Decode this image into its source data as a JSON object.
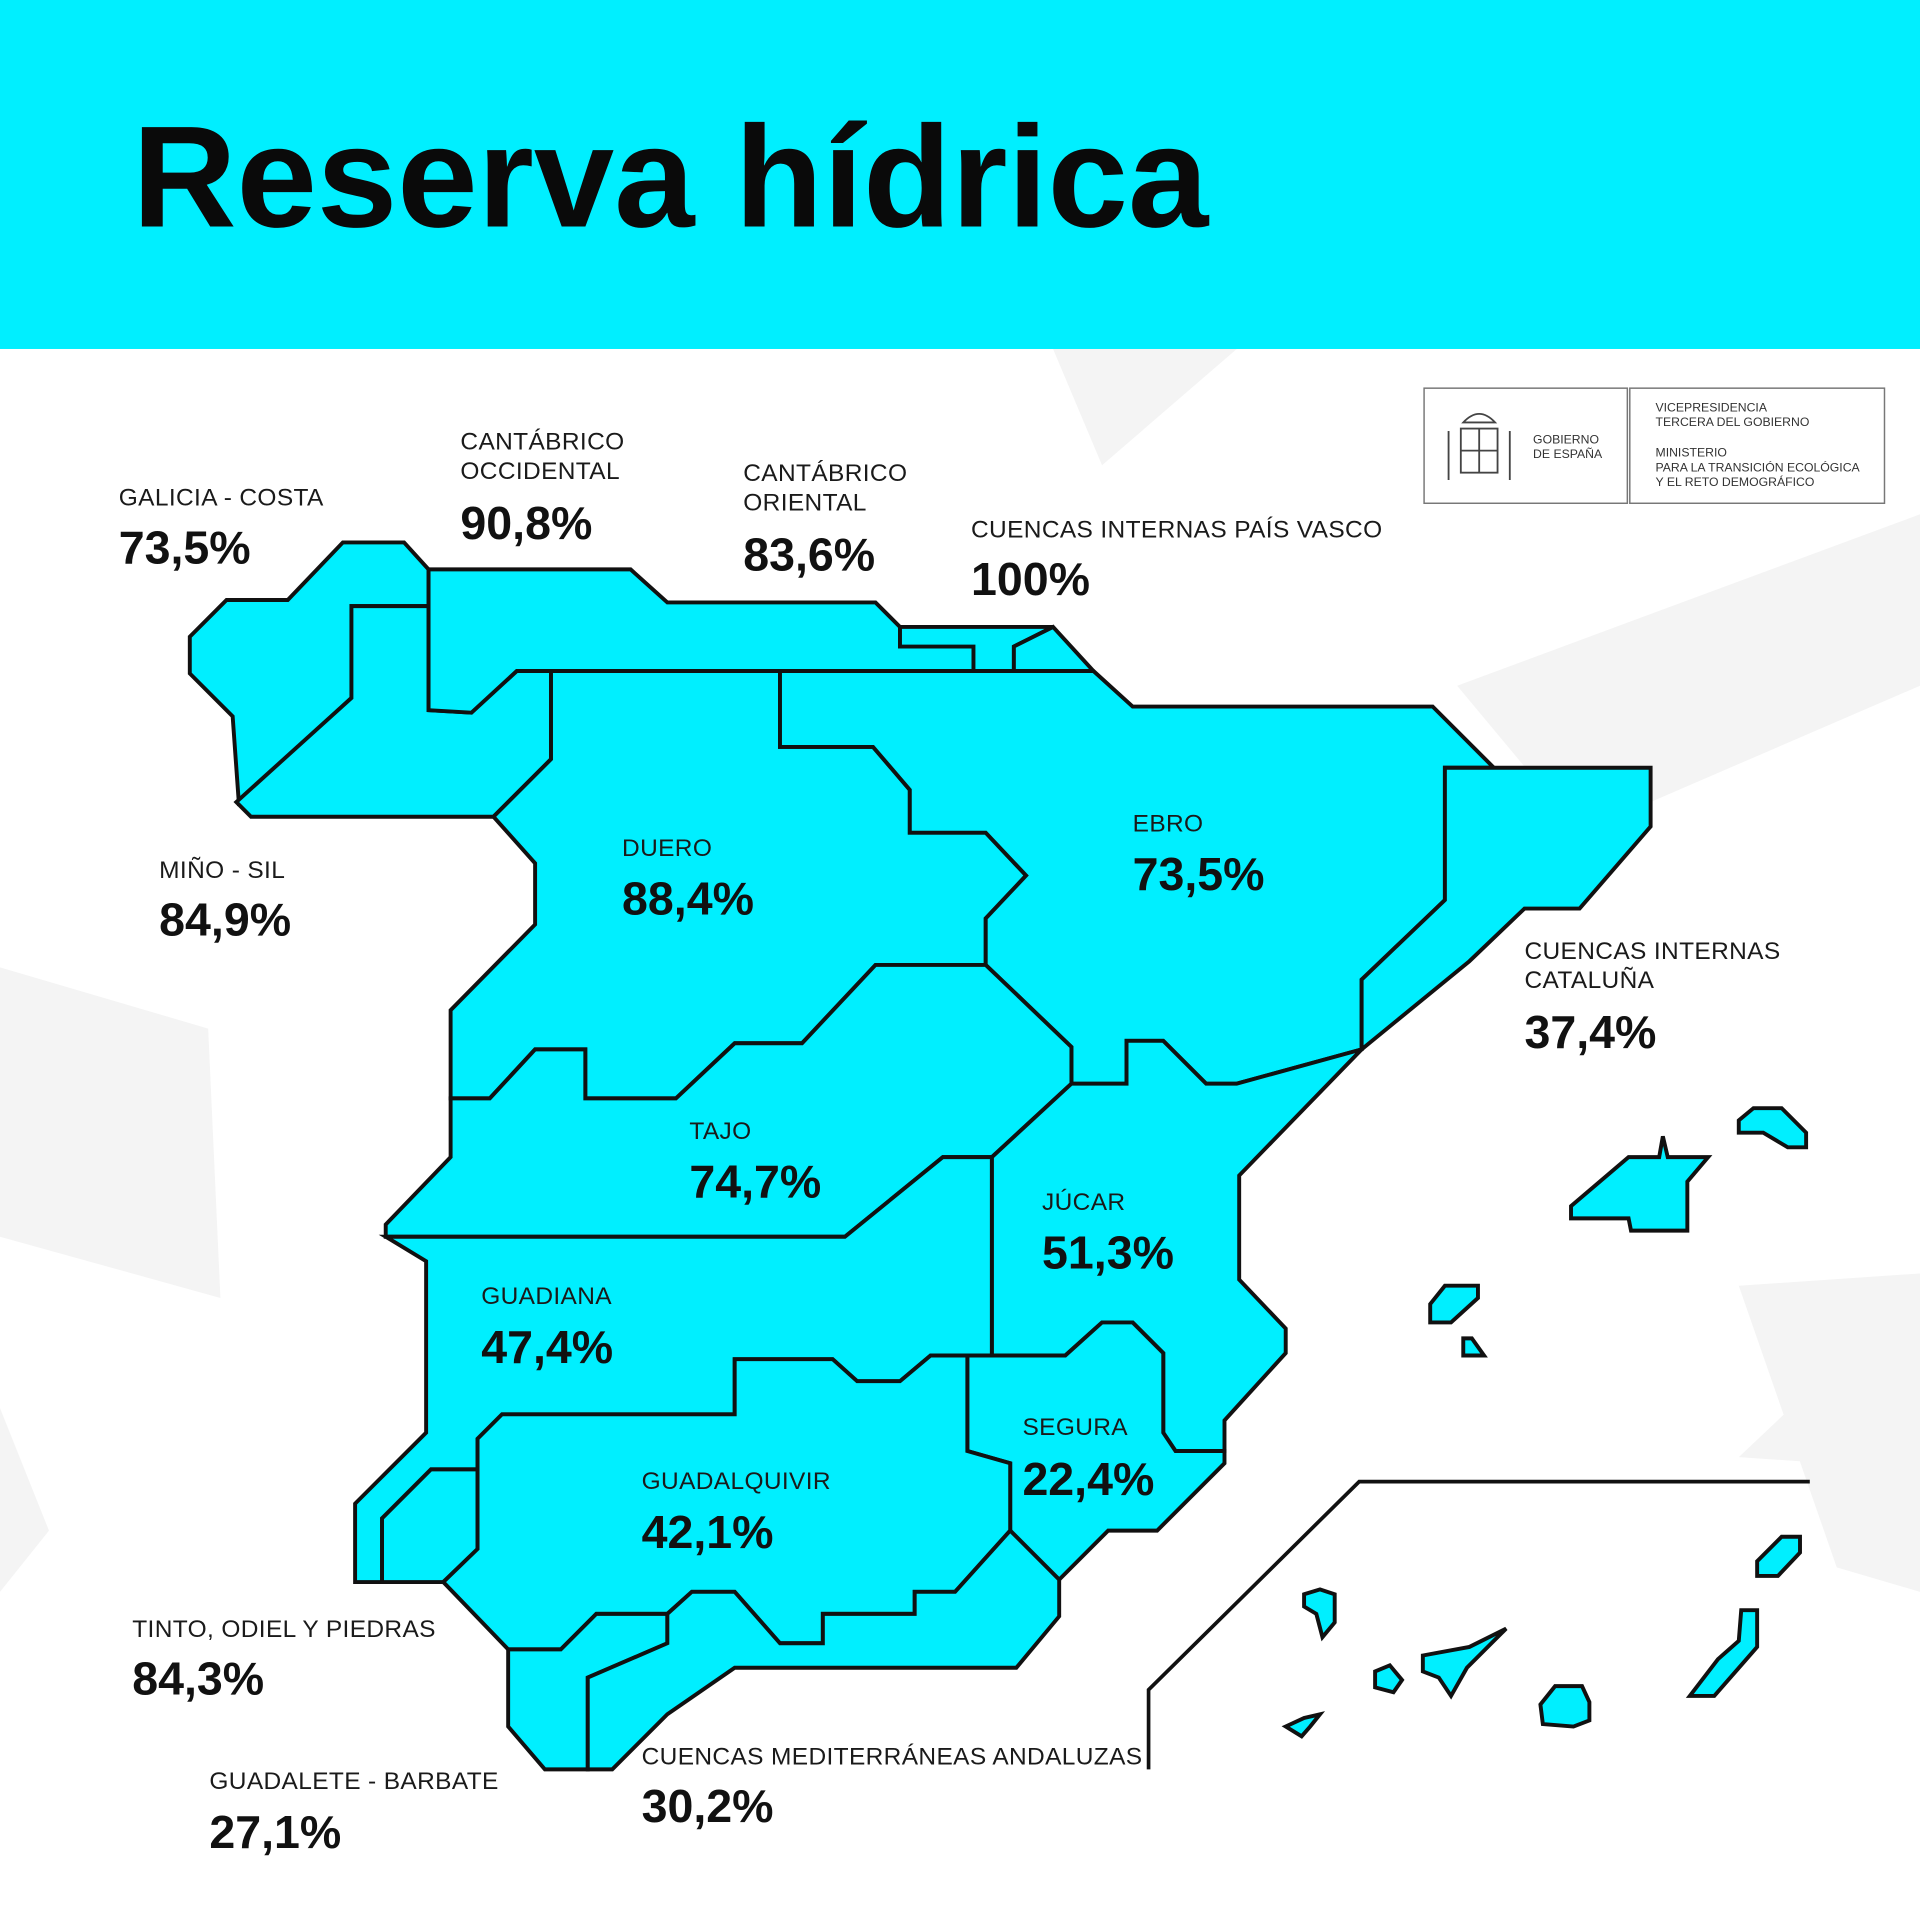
{
  "title": "Reserva hídrica",
  "colors": {
    "header": "#00EFFF",
    "region_fill": "#00EFFF",
    "border": "#111111"
  },
  "logo": {
    "left": [
      "GOBIERNO",
      "DE ESPAÑA"
    ],
    "right_top": [
      "VICEPRESIDENCIA",
      "TERCERA DEL GOBIERNO"
    ],
    "right_bottom": [
      "MINISTERIO",
      "PARA LA TRANSICIÓN ECOLÓGICA",
      "Y EL RETO DEMOGRÁFICO"
    ]
  },
  "basins": {
    "galicia": {
      "name": [
        "GALICIA - COSTA"
      ],
      "value": "73,5%",
      "percent": 73.5
    },
    "cant_occ": {
      "name": [
        "CANTÁBRICO",
        "OCCIDENTAL"
      ],
      "value": "90,8%",
      "percent": 90.8
    },
    "cant_or": {
      "name": [
        "CANTÁBRICO",
        "ORIENTAL"
      ],
      "value": "83,6%",
      "percent": 83.6
    },
    "pais_vasco": {
      "name": [
        "CUENCAS INTERNAS PAÍS VASCO"
      ],
      "value": "100%",
      "percent": 100
    },
    "mino": {
      "name": [
        "MIÑO - SIL"
      ],
      "value": "84,9%",
      "percent": 84.9
    },
    "duero": {
      "name": [
        "DUERO"
      ],
      "value": "88,4%",
      "percent": 88.4
    },
    "ebro": {
      "name": [
        "EBRO"
      ],
      "value": "73,5%",
      "percent": 73.5
    },
    "cataluna": {
      "name": [
        "CUENCAS INTERNAS",
        "CATALUÑA"
      ],
      "value": "37,4%",
      "percent": 37.4
    },
    "tajo": {
      "name": [
        "TAJO"
      ],
      "value": "74,7%",
      "percent": 74.7
    },
    "jucar": {
      "name": [
        "JÚCAR"
      ],
      "value": "51,3%",
      "percent": 51.3
    },
    "guadiana": {
      "name": [
        "GUADIANA"
      ],
      "value": "47,4%",
      "percent": 47.4
    },
    "segura": {
      "name": [
        "SEGURA"
      ],
      "value": "22,4%",
      "percent": 22.4
    },
    "guadalquivir": {
      "name": [
        "GUADALQUIVIR"
      ],
      "value": "42,1%",
      "percent": 42.1
    },
    "tinto": {
      "name": [
        "TINTO, ODIEL Y PIEDRAS"
      ],
      "value": "84,3%",
      "percent": 84.3
    },
    "guadalete": {
      "name": [
        "GUADALETE - BARBATE"
      ],
      "value": "27,1%",
      "percent": 27.1
    },
    "med_andaluzas": {
      "name": [
        "CUENCAS MEDITERRÁNEAS ANDALUZAS"
      ],
      "value": "30,2%",
      "percent": 30.2
    }
  }
}
